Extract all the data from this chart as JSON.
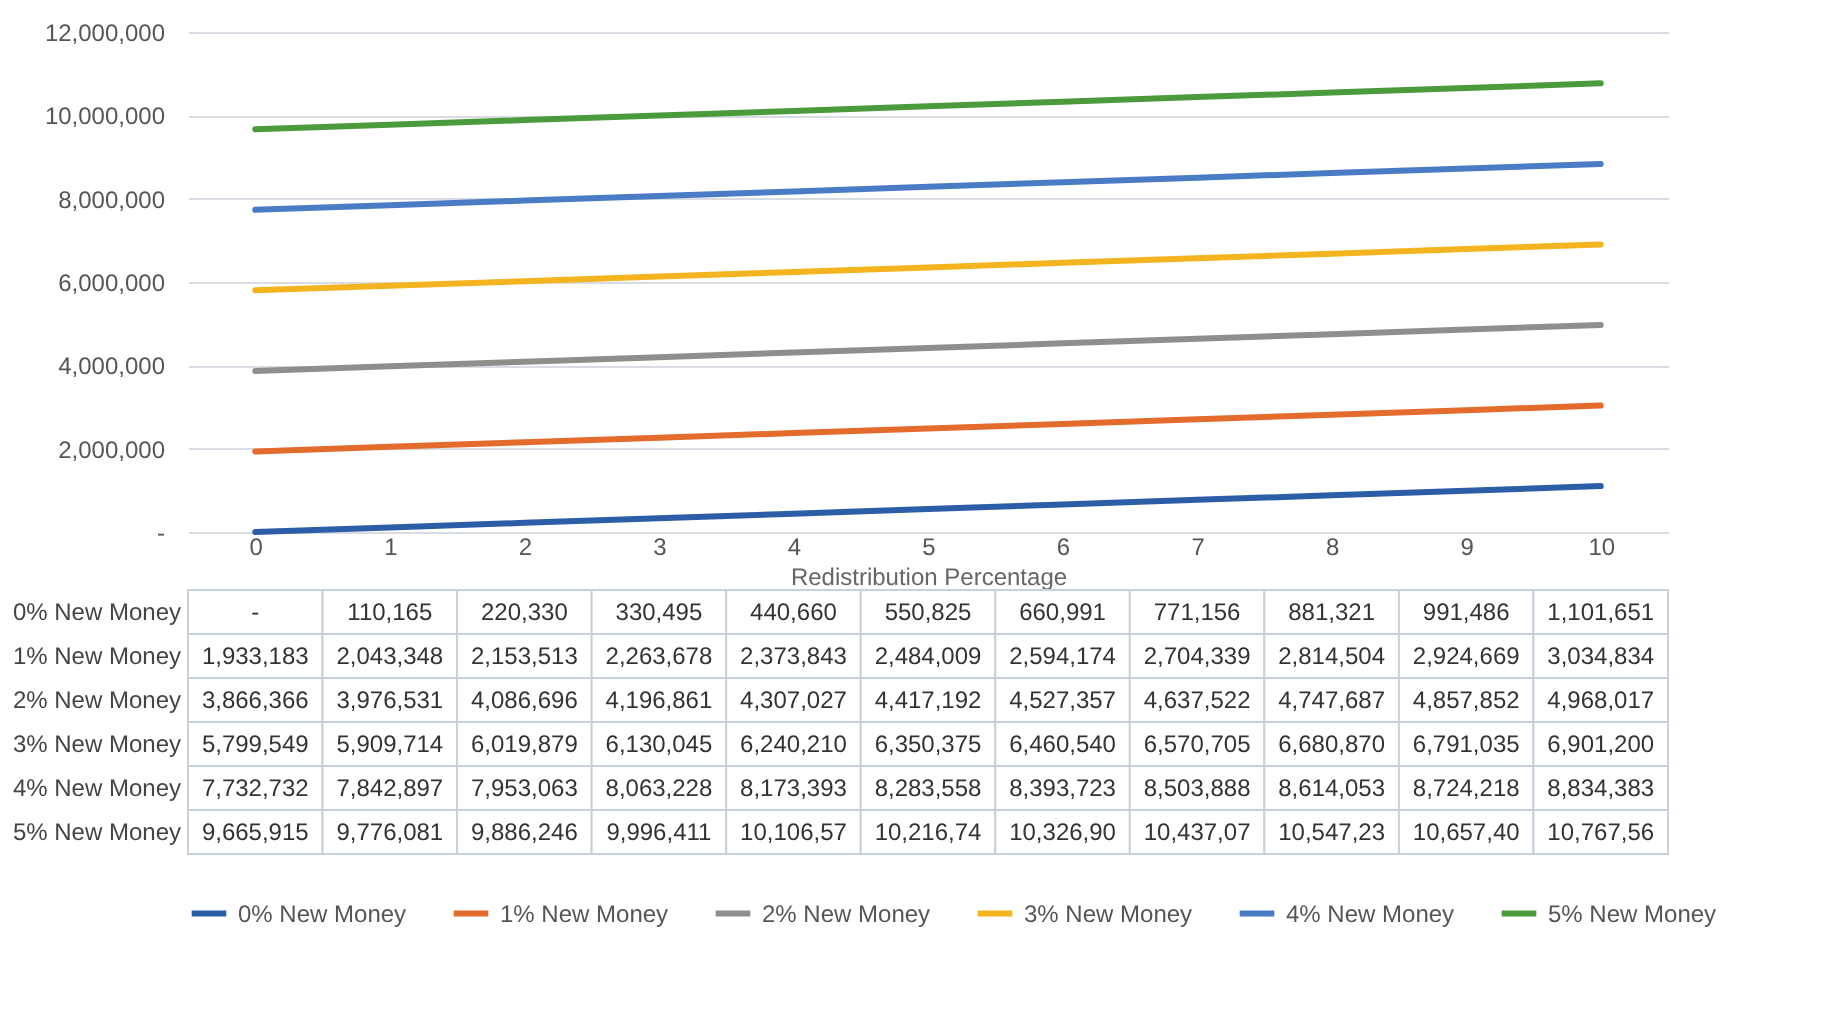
{
  "chart_data": {
    "type": "line",
    "xlabel": "Redistribution Percentage",
    "categories": [
      "0",
      "1",
      "2",
      "3",
      "4",
      "5",
      "6",
      "7",
      "8",
      "9",
      "10"
    ],
    "series": [
      {
        "name": "0% New Money",
        "color": "#2c5ea8",
        "values": [
          0,
          110165,
          220330,
          330495,
          440660,
          550825,
          660991,
          771156,
          881321,
          991486,
          1101651
        ],
        "value_labels": [
          "-",
          "110,165",
          "220,330",
          "330,495",
          "440,660",
          "550,825",
          "660,991",
          "771,156",
          "881,321",
          "991,486",
          "1,101,651"
        ]
      },
      {
        "name": "1% New Money",
        "color": "#e36b2c",
        "values": [
          1933183,
          2043348,
          2153513,
          2263678,
          2373843,
          2484009,
          2594174,
          2704339,
          2814504,
          2924669,
          3034834
        ],
        "value_labels": [
          "1,933,183",
          "2,043,348",
          "2,153,513",
          "2,263,678",
          "2,373,843",
          "2,484,009",
          "2,594,174",
          "2,704,339",
          "2,814,504",
          "2,924,669",
          "3,034,834"
        ]
      },
      {
        "name": "2% New Money",
        "color": "#8e8e8e",
        "values": [
          3866366,
          3976531,
          4086696,
          4196861,
          4307027,
          4417192,
          4527357,
          4637522,
          4747687,
          4857852,
          4968017
        ],
        "value_labels": [
          "3,866,366",
          "3,976,531",
          "4,086,696",
          "4,196,861",
          "4,307,027",
          "4,417,192",
          "4,527,357",
          "4,637,522",
          "4,747,687",
          "4,857,852",
          "4,968,017"
        ]
      },
      {
        "name": "3% New Money",
        "color": "#f4b41f",
        "values": [
          5799549,
          5909714,
          6019879,
          6130045,
          6240210,
          6350375,
          6460540,
          6570705,
          6680870,
          6791035,
          6901200
        ],
        "value_labels": [
          "5,799,549",
          "5,909,714",
          "6,019,879",
          "6,130,045",
          "6,240,210",
          "6,350,375",
          "6,460,540",
          "6,570,705",
          "6,680,870",
          "6,791,035",
          "6,901,200"
        ]
      },
      {
        "name": "4% New Money",
        "color": "#4a7cc6",
        "values": [
          7732732,
          7842897,
          7953063,
          8063228,
          8173393,
          8283558,
          8393723,
          8503888,
          8614053,
          8724218,
          8834383
        ],
        "value_labels": [
          "7,732,732",
          "7,842,897",
          "7,953,063",
          "8,063,228",
          "8,173,393",
          "8,283,558",
          "8,393,723",
          "8,503,888",
          "8,614,053",
          "8,724,218",
          "8,834,383"
        ]
      },
      {
        "name": "5% New Money",
        "color": "#4b9a3b",
        "values": [
          9665915,
          9776081,
          9886246,
          9996411,
          10106570,
          10216740,
          10326900,
          10437070,
          10547230,
          10657400,
          10767560
        ],
        "value_labels": [
          "9,665,915",
          "9,776,081",
          "9,886,246",
          "9,996,411",
          "10,106,57",
          "10,216,74",
          "10,326,90",
          "10,437,07",
          "10,547,23",
          "10,657,40",
          "10,767,56"
        ]
      }
    ],
    "ylim": [
      0,
      12000000
    ],
    "yticks": [
      {
        "value": 0,
        "label": "-"
      },
      {
        "value": 2000000,
        "label": "2,000,000"
      },
      {
        "value": 4000000,
        "label": "4,000,000"
      },
      {
        "value": 6000000,
        "label": "6,000,000"
      },
      {
        "value": 8000000,
        "label": "8,000,000"
      },
      {
        "value": 10000000,
        "label": "10,000,000"
      },
      {
        "value": 12000000,
        "label": "12,000,000"
      }
    ],
    "grid": "y",
    "legend": "bottom",
    "marker": "none",
    "line_style": "solid"
  }
}
